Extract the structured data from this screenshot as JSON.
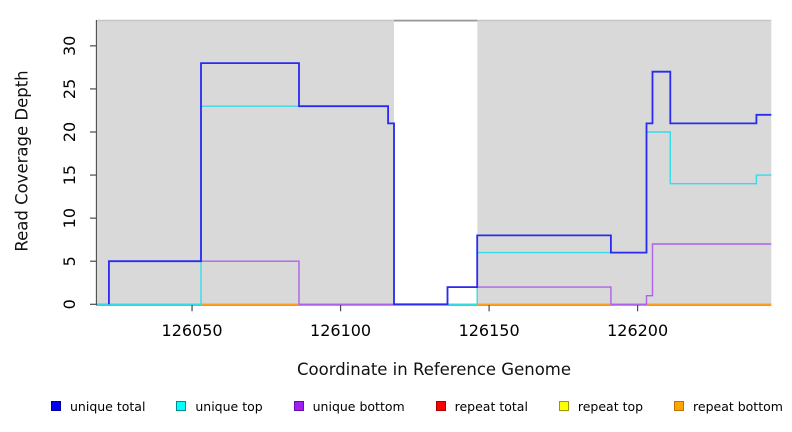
{
  "chart_data": {
    "type": "line",
    "subtype": "step",
    "title": "",
    "xlabel": "Coordinate in Reference Genome",
    "ylabel": "Read Coverage Depth",
    "xlim": [
      126018,
      126245
    ],
    "ylim": [
      0,
      33
    ],
    "x_ticks": [
      126050,
      126100,
      126150,
      126200
    ],
    "x_tick_labels": [
      "126050",
      "126100",
      "126150",
      "126200"
    ],
    "y_ticks": [
      0,
      5,
      10,
      15,
      20,
      25,
      30
    ],
    "y_tick_labels": [
      "0",
      "5",
      "10",
      "15",
      "20",
      "25",
      "30"
    ],
    "grid": false,
    "legend_position": "bottom",
    "plot_bg_color": "#d9d9d9",
    "axis_color": "#4a4a4a",
    "tick_label_color": "#000000",
    "masked_region": {
      "x_start": 126118,
      "x_end": 126146,
      "color": "#ffffff",
      "top_border_color": "#999999"
    },
    "legend": [
      {
        "label": "unique total",
        "fill": "#0000EE",
        "border": "#0000A0"
      },
      {
        "label": "unique top",
        "fill": "#00FFFF",
        "border": "#008B8B"
      },
      {
        "label": "unique bottom",
        "fill": "#A020F0",
        "border": "#6A0DAD"
      },
      {
        "label": "repeat total",
        "fill": "#FF0000",
        "border": "#AA0000"
      },
      {
        "label": "repeat top",
        "fill": "#FFFF00",
        "border": "#9A9A00"
      },
      {
        "label": "repeat bottom",
        "fill": "#FFA500",
        "border": "#B87400"
      }
    ],
    "series": [
      {
        "name": "repeat total",
        "color": "#FF3344",
        "width": 1.3,
        "points": [
          [
            126018,
            0
          ]
        ]
      },
      {
        "name": "repeat top",
        "color": "#FFE81A",
        "width": 1.3,
        "points": [
          [
            126018,
            0
          ]
        ]
      },
      {
        "name": "repeat bottom",
        "color": "#FF9E1C",
        "width": 1.4,
        "points": [
          [
            126018,
            0
          ]
        ]
      },
      {
        "name": "unique bottom",
        "color": "#AD63E8",
        "width": 1.4,
        "points": [
          [
            126018,
            0
          ],
          [
            126022,
            5
          ],
          [
            126086,
            0
          ],
          [
            126136,
            2
          ],
          [
            126191,
            0
          ],
          [
            126203,
            1
          ],
          [
            126205,
            7
          ]
        ]
      },
      {
        "name": "unique top",
        "color": "#35DCE6",
        "width": 1.4,
        "points": [
          [
            126018,
            0
          ],
          [
            126053,
            23
          ],
          [
            126116,
            21
          ],
          [
            126118,
            0
          ],
          [
            126146,
            6
          ],
          [
            126203,
            20
          ],
          [
            126211,
            14
          ],
          [
            126240,
            15
          ]
        ]
      },
      {
        "name": "unique total",
        "color": "#2A2AF0",
        "width": 1.8,
        "points": [
          [
            126022,
            0
          ],
          [
            126022,
            5
          ],
          [
            126053,
            28
          ],
          [
            126086,
            23
          ],
          [
            126116,
            21
          ],
          [
            126118,
            0
          ],
          [
            126136,
            2
          ],
          [
            126146,
            8
          ],
          [
            126191,
            6
          ],
          [
            126203,
            21
          ],
          [
            126205,
            27
          ],
          [
            126211,
            21
          ],
          [
            126240,
            22
          ]
        ]
      }
    ]
  }
}
